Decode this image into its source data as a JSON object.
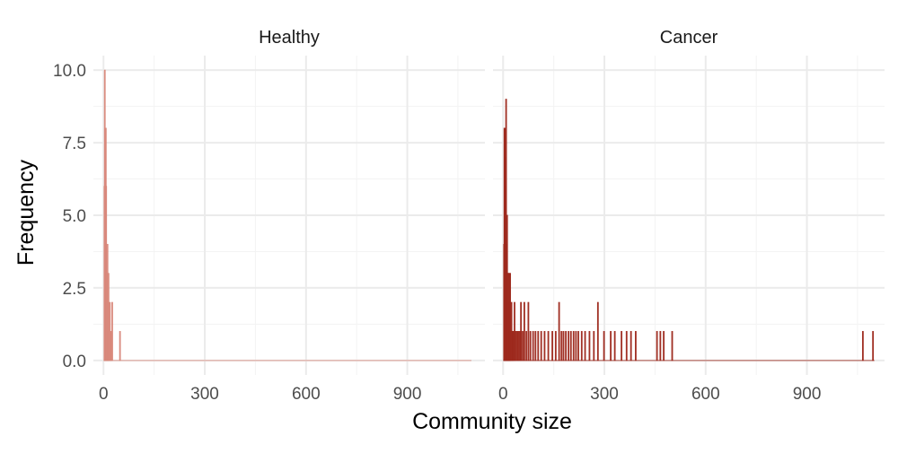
{
  "chart_data": {
    "type": "histogram",
    "xlabel": "Community size",
    "ylabel": "Frequency",
    "xlim": [
      -30,
      1130
    ],
    "ylim": [
      -0.5,
      10.5
    ],
    "x_ticks": [
      0,
      300,
      600,
      900
    ],
    "x_tick_labels": [
      "0",
      "300",
      "600",
      "900"
    ],
    "y_ticks": [
      0,
      2.5,
      5,
      7.5,
      10
    ],
    "y_tick_labels": [
      "0.0",
      "2.5",
      "5.0",
      "7.5",
      "10.0"
    ],
    "grid": true,
    "legend": "none",
    "panels": [
      {
        "title": "Healthy",
        "color": "#d9897c",
        "x_range": [
          0,
          1090
        ],
        "bars": [
          {
            "x": 2,
            "y": 6
          },
          {
            "x": 3,
            "y": 10
          },
          {
            "x": 4,
            "y": 8
          },
          {
            "x": 5,
            "y": 7
          },
          {
            "x": 6,
            "y": 8
          },
          {
            "x": 7,
            "y": 6
          },
          {
            "x": 8,
            "y": 4
          },
          {
            "x": 9,
            "y": 3
          },
          {
            "x": 10,
            "y": 3
          },
          {
            "x": 11,
            "y": 4
          },
          {
            "x": 12,
            "y": 2
          },
          {
            "x": 13,
            "y": 1
          },
          {
            "x": 14,
            "y": 3
          },
          {
            "x": 16,
            "y": 1
          },
          {
            "x": 18,
            "y": 2
          },
          {
            "x": 20,
            "y": 1
          },
          {
            "x": 22,
            "y": 1
          },
          {
            "x": 25,
            "y": 2
          },
          {
            "x": 48,
            "y": 1
          }
        ]
      },
      {
        "title": "Cancer",
        "color": "#9e2a1e",
        "x_range": [
          0,
          1100
        ],
        "bars": [
          {
            "x": 2,
            "y": 4
          },
          {
            "x": 3,
            "y": 8
          },
          {
            "x": 4,
            "y": 5
          },
          {
            "x": 5,
            "y": 8
          },
          {
            "x": 6,
            "y": 7
          },
          {
            "x": 7,
            "y": 6
          },
          {
            "x": 8,
            "y": 9
          },
          {
            "x": 9,
            "y": 4
          },
          {
            "x": 10,
            "y": 3
          },
          {
            "x": 11,
            "y": 5
          },
          {
            "x": 12,
            "y": 2
          },
          {
            "x": 13,
            "y": 3
          },
          {
            "x": 14,
            "y": 3
          },
          {
            "x": 15,
            "y": 2
          },
          {
            "x": 16,
            "y": 1
          },
          {
            "x": 17,
            "y": 3
          },
          {
            "x": 18,
            "y": 2
          },
          {
            "x": 19,
            "y": 1
          },
          {
            "x": 20,
            "y": 3
          },
          {
            "x": 22,
            "y": 1
          },
          {
            "x": 24,
            "y": 2
          },
          {
            "x": 26,
            "y": 1
          },
          {
            "x": 28,
            "y": 1
          },
          {
            "x": 30,
            "y": 1
          },
          {
            "x": 33,
            "y": 2
          },
          {
            "x": 36,
            "y": 1
          },
          {
            "x": 40,
            "y": 1
          },
          {
            "x": 44,
            "y": 1
          },
          {
            "x": 48,
            "y": 1
          },
          {
            "x": 52,
            "y": 2
          },
          {
            "x": 57,
            "y": 1
          },
          {
            "x": 62,
            "y": 2
          },
          {
            "x": 68,
            "y": 1
          },
          {
            "x": 74,
            "y": 2
          },
          {
            "x": 80,
            "y": 1
          },
          {
            "x": 88,
            "y": 1
          },
          {
            "x": 95,
            "y": 1
          },
          {
            "x": 103,
            "y": 1
          },
          {
            "x": 112,
            "y": 1
          },
          {
            "x": 122,
            "y": 1
          },
          {
            "x": 133,
            "y": 1
          },
          {
            "x": 145,
            "y": 1
          },
          {
            "x": 155,
            "y": 1
          },
          {
            "x": 165,
            "y": 2
          },
          {
            "x": 172,
            "y": 1
          },
          {
            "x": 178,
            "y": 1
          },
          {
            "x": 185,
            "y": 1
          },
          {
            "x": 193,
            "y": 1
          },
          {
            "x": 200,
            "y": 1
          },
          {
            "x": 208,
            "y": 1
          },
          {
            "x": 215,
            "y": 1
          },
          {
            "x": 222,
            "y": 1
          },
          {
            "x": 232,
            "y": 1
          },
          {
            "x": 242,
            "y": 1
          },
          {
            "x": 255,
            "y": 1
          },
          {
            "x": 268,
            "y": 1
          },
          {
            "x": 280,
            "y": 2
          },
          {
            "x": 298,
            "y": 1
          },
          {
            "x": 318,
            "y": 1
          },
          {
            "x": 330,
            "y": 1
          },
          {
            "x": 350,
            "y": 1
          },
          {
            "x": 365,
            "y": 1
          },
          {
            "x": 378,
            "y": 1
          },
          {
            "x": 392,
            "y": 1
          },
          {
            "x": 455,
            "y": 1
          },
          {
            "x": 465,
            "y": 1
          },
          {
            "x": 475,
            "y": 1
          },
          {
            "x": 500,
            "y": 1
          },
          {
            "x": 1065,
            "y": 1
          },
          {
            "x": 1095,
            "y": 1
          }
        ]
      }
    ]
  }
}
